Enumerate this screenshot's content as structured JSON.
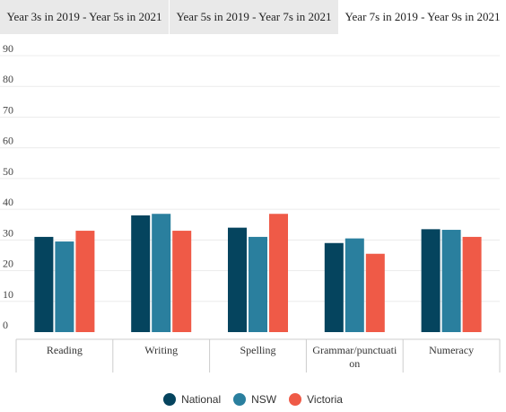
{
  "tabs": [
    {
      "label": "Year 3s in 2019 - Year 5s in 2021",
      "active": false
    },
    {
      "label": "Year 5s in 2019 - Year 7s in 2021",
      "active": false
    },
    {
      "label": "Year 7s in 2019 - Year 9s in 2021",
      "active": true
    }
  ],
  "chart_data": {
    "type": "bar",
    "categories": [
      "Reading",
      "Writing",
      "Spelling",
      "Grammar/punctuation",
      "Numeracy"
    ],
    "category_label_lines": [
      [
        "Reading"
      ],
      [
        "Writing"
      ],
      [
        "Spelling"
      ],
      [
        "Grammar/punctuati",
        "on"
      ],
      [
        "Numeracy"
      ]
    ],
    "series": [
      {
        "name": "National",
        "color": "#05445e",
        "values": [
          31,
          38,
          34,
          29,
          33.5
        ]
      },
      {
        "name": "NSW",
        "color": "#2a7f9e",
        "values": [
          29.5,
          38.5,
          31,
          30.5,
          33.3
        ]
      },
      {
        "name": "Victoria",
        "color": "#ef5a47",
        "values": [
          33,
          33,
          38.5,
          25.5,
          31
        ]
      }
    ],
    "ylim": [
      0,
      90
    ],
    "yticks": [
      0,
      10,
      20,
      30,
      40,
      50,
      60,
      70,
      80,
      90
    ],
    "grid": true,
    "legend_position": "bottom"
  }
}
